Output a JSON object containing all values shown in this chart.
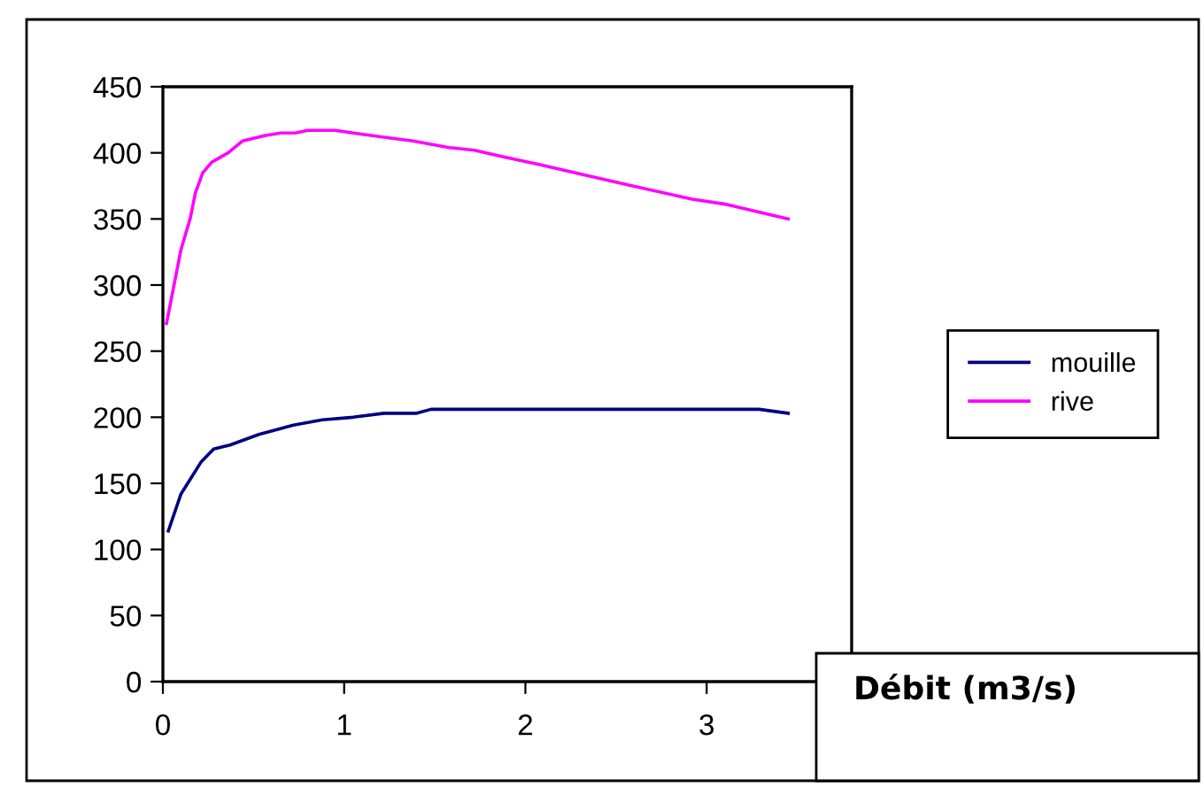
{
  "chart_data": {
    "type": "line",
    "xlabel": "Débit (m3/s)",
    "xlim": [
      0,
      3.8
    ],
    "xticks": [
      0,
      1,
      2,
      3
    ],
    "ylim": [
      0,
      450
    ],
    "yticks": [
      0,
      50,
      100,
      150,
      200,
      250,
      300,
      350,
      400,
      450
    ],
    "grid": false,
    "legend": "right",
    "marker": "none",
    "line_style": "solid",
    "series": [
      {
        "name": "mouille",
        "color": "#000080",
        "x": [
          0.03,
          0.1,
          0.21,
          0.28,
          0.37,
          0.53,
          0.72,
          0.88,
          1.05,
          1.22,
          1.4,
          1.48,
          3.29,
          3.45
        ],
        "values": [
          114,
          142,
          166,
          176,
          179,
          187,
          194,
          198,
          200,
          203,
          203,
          206,
          206,
          203
        ]
      },
      {
        "name": "rive",
        "color": "#ff00ff",
        "x": [
          0.02,
          0.1,
          0.15,
          0.18,
          0.22,
          0.27,
          0.36,
          0.44,
          0.56,
          0.65,
          0.73,
          0.8,
          0.95,
          1.05,
          1.21,
          1.38,
          1.58,
          1.72,
          1.88,
          2.08,
          2.27,
          2.59,
          2.92,
          3.11,
          3.45
        ],
        "values": [
          271,
          327,
          350,
          370,
          385,
          393,
          400,
          409,
          413,
          415,
          415,
          417,
          417,
          415,
          412,
          409,
          404,
          402,
          397,
          391,
          385,
          375,
          365,
          361,
          350
        ]
      }
    ]
  }
}
